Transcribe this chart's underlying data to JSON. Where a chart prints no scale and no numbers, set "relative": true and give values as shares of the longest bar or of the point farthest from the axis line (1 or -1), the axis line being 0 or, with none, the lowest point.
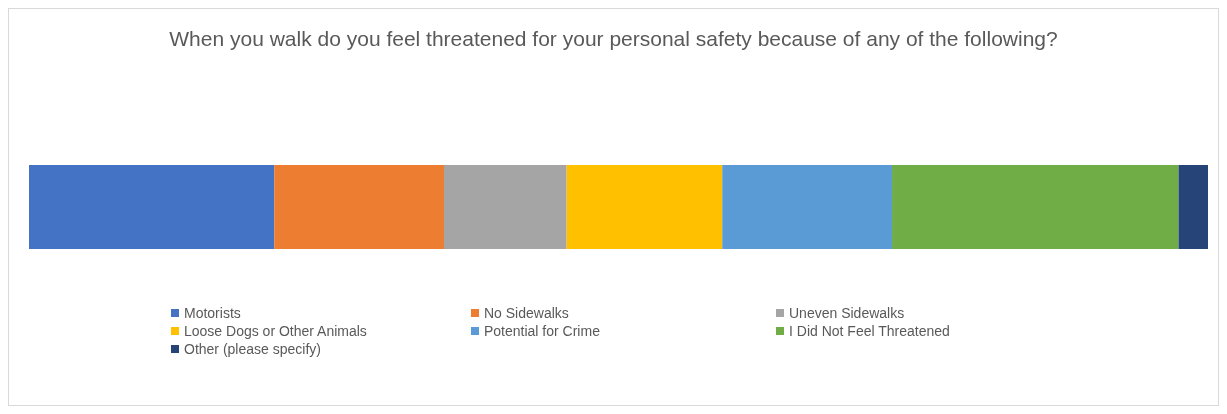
{
  "chart_data": {
    "type": "bar",
    "orientation": "horizontal",
    "stacked": true,
    "relative": true,
    "title": "When you walk do you feel threatened for your personal safety because of any of the following?",
    "categories": [
      null
    ],
    "legend": "bottom",
    "series": [
      {
        "name": "Motorists",
        "color": "#4472c4",
        "values": [
          0.208
        ]
      },
      {
        "name": "No Sidewalks",
        "color": "#ed7d31",
        "values": [
          0.144
        ]
      },
      {
        "name": "Uneven Sidewalks",
        "color": "#a5a5a5",
        "values": [
          0.104
        ]
      },
      {
        "name": "Loose Dogs or Other Animals",
        "color": "#ffc000",
        "values": [
          0.132
        ]
      },
      {
        "name": "Potential for Crime",
        "color": "#5b9bd5",
        "values": [
          0.144
        ]
      },
      {
        "name": "I Did Not Feel Threatened",
        "color": "#70ad47",
        "values": [
          0.243
        ]
      },
      {
        "name": "Other (please specify)",
        "color": "#264478",
        "values": [
          0.025
        ]
      }
    ]
  }
}
